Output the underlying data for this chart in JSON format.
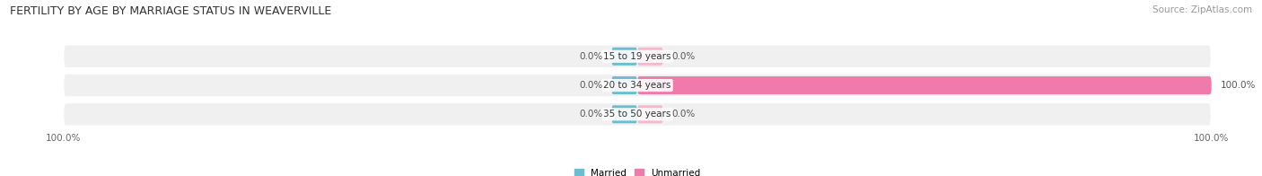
{
  "title": "FERTILITY BY AGE BY MARRIAGE STATUS IN WEAVERVILLE",
  "source": "Source: ZipAtlas.com",
  "categories": [
    "15 to 19 years",
    "20 to 34 years",
    "35 to 50 years"
  ],
  "married_values": [
    0.0,
    0.0,
    0.0
  ],
  "unmarried_values": [
    0.0,
    100.0,
    0.0
  ],
  "married_color": "#6bbdd1",
  "unmarried_color": "#f07aaa",
  "unmarried_stub_color": "#f5b8ce",
  "bar_bg_color": "#e8e8e8",
  "bar_height": 0.62,
  "married_label": "Married",
  "unmarried_label": "Unmarried",
  "title_fontsize": 9,
  "source_fontsize": 7.5,
  "label_fontsize": 7.5,
  "tick_fontsize": 7.5,
  "fig_width": 14.06,
  "fig_height": 1.96,
  "fig_dpi": 100,
  "background_color": "#ffffff",
  "bar_row_bg": "#f0f0f0"
}
